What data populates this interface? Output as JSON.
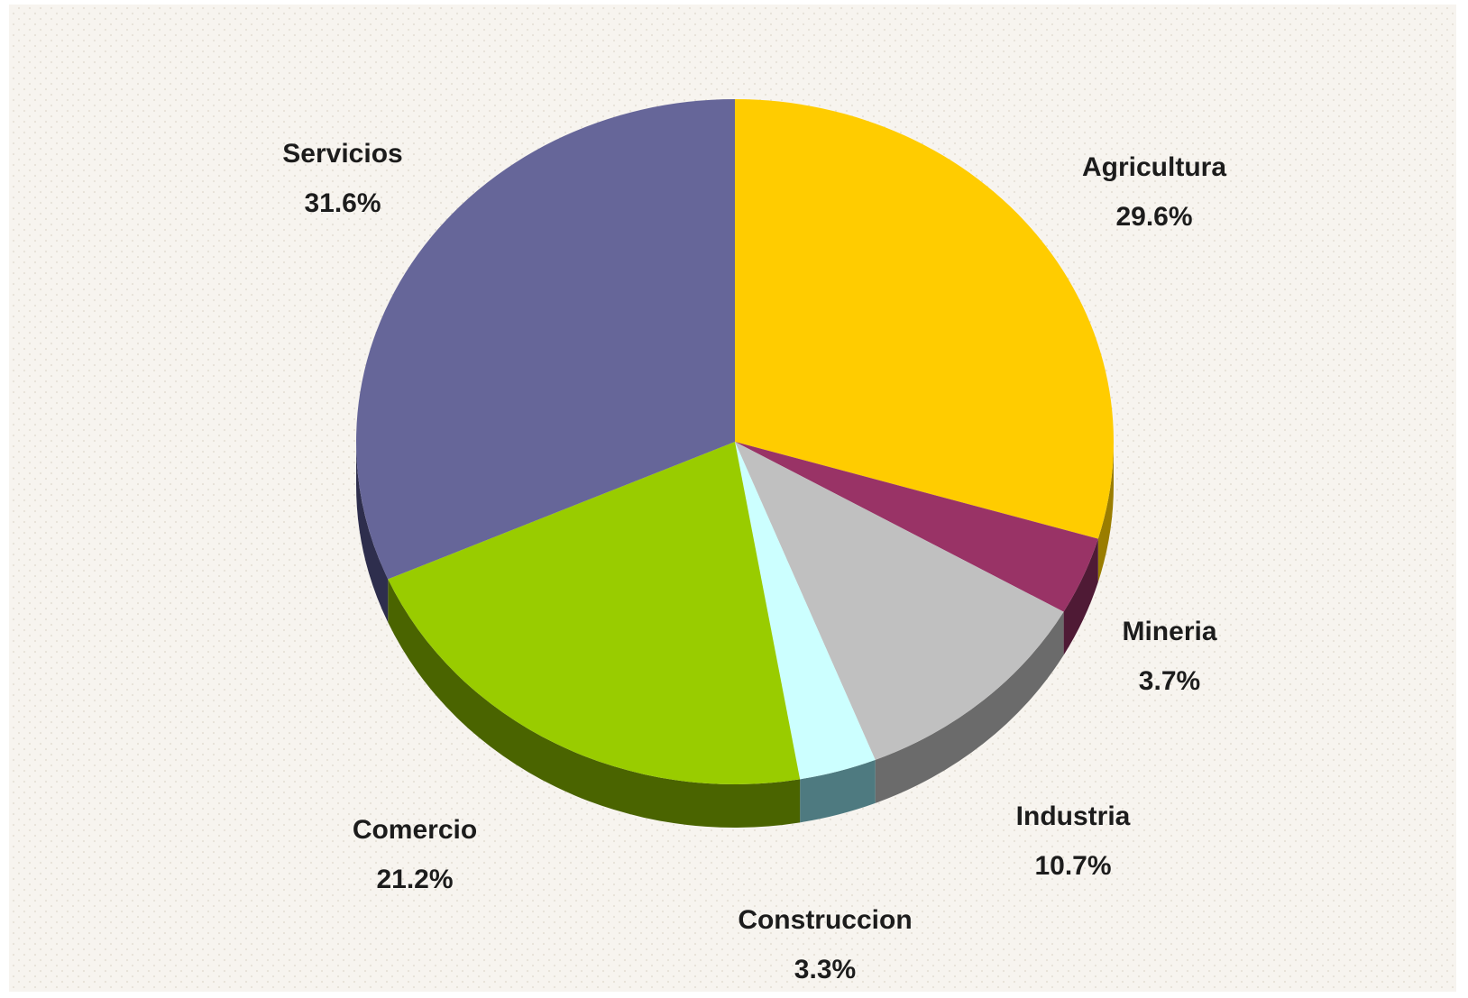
{
  "chart_data": {
    "type": "pie",
    "title": "",
    "start_angle_deg": 0,
    "direction": "clockwise",
    "slices": [
      {
        "label": "Agricultura",
        "value_text": "29.6%",
        "value": 29.6,
        "color": "#ffcc00",
        "side_color": "#9a7d00"
      },
      {
        "label": "Mineria",
        "value_text": "3.7%",
        "value": 3.7,
        "color": "#993366",
        "side_color": "#4f1a35"
      },
      {
        "label": "Industria",
        "value_text": "10.7%",
        "value": 10.7,
        "color": "#c0c0c0",
        "side_color": "#6b6b6b"
      },
      {
        "label": "Construccion",
        "value_text": "3.3%",
        "value": 3.3,
        "color": "#ccffff",
        "side_color": "#4e7a80"
      },
      {
        "label": "Comercio",
        "value_text": "21.2%",
        "value": 21.2,
        "color": "#99cc00",
        "side_color": "#4a6400"
      },
      {
        "label": "Servicios",
        "value_text": "31.6%",
        "value": 31.6,
        "color": "#666699",
        "side_color": "#2e2e4d"
      }
    ],
    "background_color": "#f7f4ef"
  }
}
